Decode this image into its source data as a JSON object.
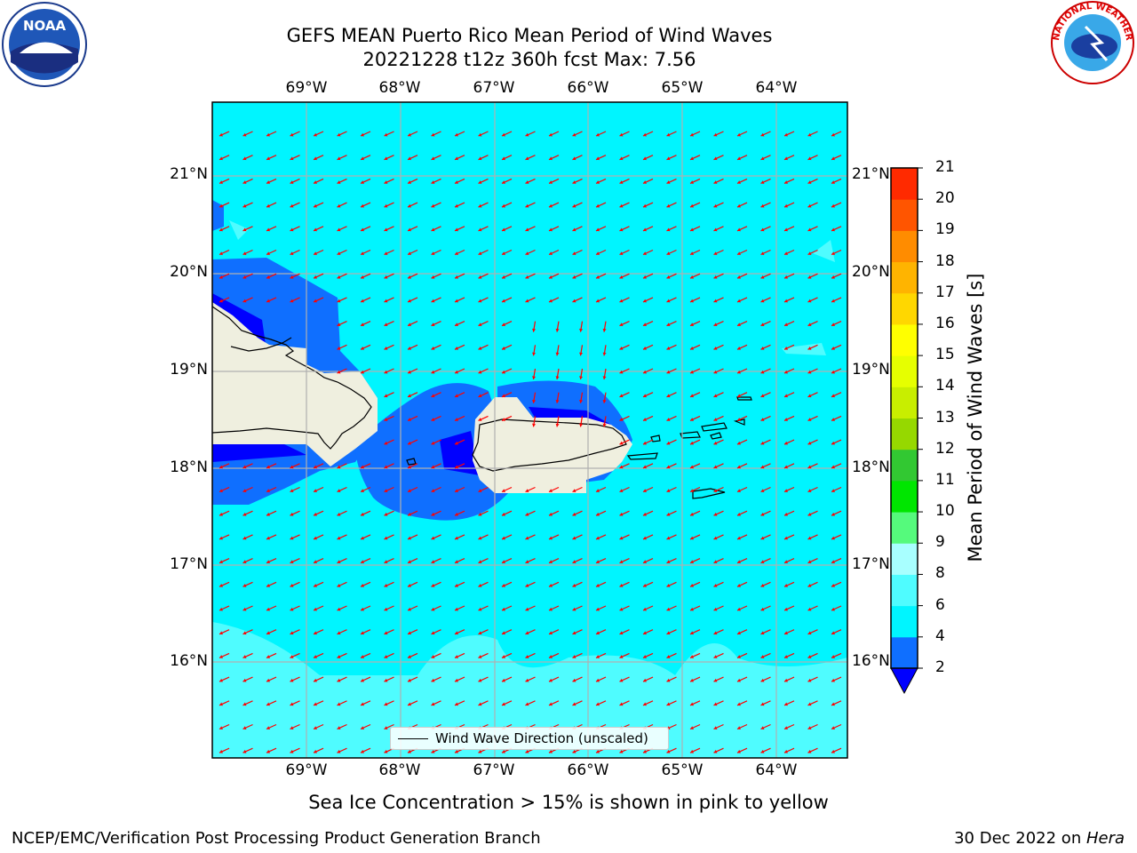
{
  "title": {
    "line1": "GEFS MEAN Puerto Rico Mean Period of Wind Waves",
    "line2": "20221228 t12z 360h fcst   Max: 7.56"
  },
  "lon_labels": [
    "69°W",
    "68°W",
    "67°W",
    "66°W",
    "65°W",
    "64°W"
  ],
  "lat_labels": [
    "21°N",
    "20°N",
    "19°N",
    "18°N",
    "17°N",
    "16°N"
  ],
  "colorbar": {
    "label": "Mean Period of Wind Waves [s]",
    "ticks": [
      "2",
      "4",
      "6",
      "8",
      "9",
      "10",
      "11",
      "12",
      "13",
      "14",
      "15",
      "16",
      "17",
      "18",
      "19",
      "20",
      "21"
    ],
    "colors": [
      "#0f6fff",
      "#00f5ff",
      "#4ffcff",
      "#a8ffff",
      "#55fa7c",
      "#00e600",
      "#32c832",
      "#96d800",
      "#c8ee00",
      "#e6ff00",
      "#ffff00",
      "#ffd700",
      "#ffb400",
      "#ff8c00",
      "#ff5500",
      "#ff2a00",
      "#ff0000"
    ],
    "under_color": "#0000ff"
  },
  "legend": {
    "label": "Wind Wave Direction (unscaled)"
  },
  "caption": "Sea Ice Concentration > 15% is shown in pink to yellow",
  "footer": {
    "left": "NCEP/EMC/Verification Post Processing Product Generation Branch",
    "right_date": "30 Dec 2022 on ",
    "right_host": "Hera"
  },
  "logos": {
    "noaa_text": "NOAA",
    "nws_text": "NATIONAL WEATHER SERVICE"
  },
  "map_colors": {
    "ocean": "#00f5ff",
    "light_band": "#4ffcff",
    "mid_band": "#0f6fff",
    "deep_band": "#0000ff",
    "land": "#efefdf",
    "arrow": "#ff0000",
    "grid": "#b0b0b0"
  }
}
